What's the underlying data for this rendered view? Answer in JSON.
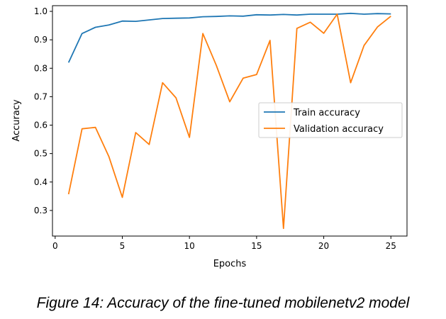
{
  "caption": "Figure 14: Accuracy of the fine-tuned mobilenetv2 model",
  "chart_data": {
    "type": "line",
    "xlabel": "Epochs",
    "ylabel": "Accuracy",
    "xlim": [
      -0.2,
      26.2
    ],
    "ylim": [
      0.21,
      1.02
    ],
    "xticks": [
      0,
      5,
      10,
      15,
      20,
      25
    ],
    "yticks": [
      0.3,
      0.4,
      0.5,
      0.6,
      0.7,
      0.8,
      0.9,
      1.0
    ],
    "ytick_labels": [
      "0.3",
      "0.4",
      "0.5",
      "0.6",
      "0.7",
      "0.8",
      "0.9",
      "1.0"
    ],
    "grid": false,
    "legend_position": "center-right",
    "x": [
      1,
      2,
      3,
      4,
      5,
      6,
      7,
      8,
      9,
      10,
      11,
      12,
      13,
      14,
      15,
      16,
      17,
      18,
      19,
      20,
      21,
      22,
      23,
      24,
      25
    ],
    "series": [
      {
        "name": "Train accuracy",
        "color": "#1f77b4",
        "values": [
          0.82,
          0.922,
          0.944,
          0.952,
          0.966,
          0.965,
          0.97,
          0.975,
          0.976,
          0.977,
          0.981,
          0.982,
          0.984,
          0.983,
          0.988,
          0.987,
          0.989,
          0.987,
          0.99,
          0.99,
          0.99,
          0.993,
          0.99,
          0.992,
          0.991
        ]
      },
      {
        "name": "Validation accuracy",
        "color": "#ff7f0e",
        "values": [
          0.357,
          0.587,
          0.592,
          0.49,
          0.346,
          0.574,
          0.532,
          0.749,
          0.696,
          0.557,
          0.922,
          0.81,
          0.682,
          0.765,
          0.778,
          0.898,
          0.237,
          0.94,
          0.962,
          0.923,
          0.99,
          0.749,
          0.88,
          0.945,
          0.983
        ]
      }
    ]
  }
}
